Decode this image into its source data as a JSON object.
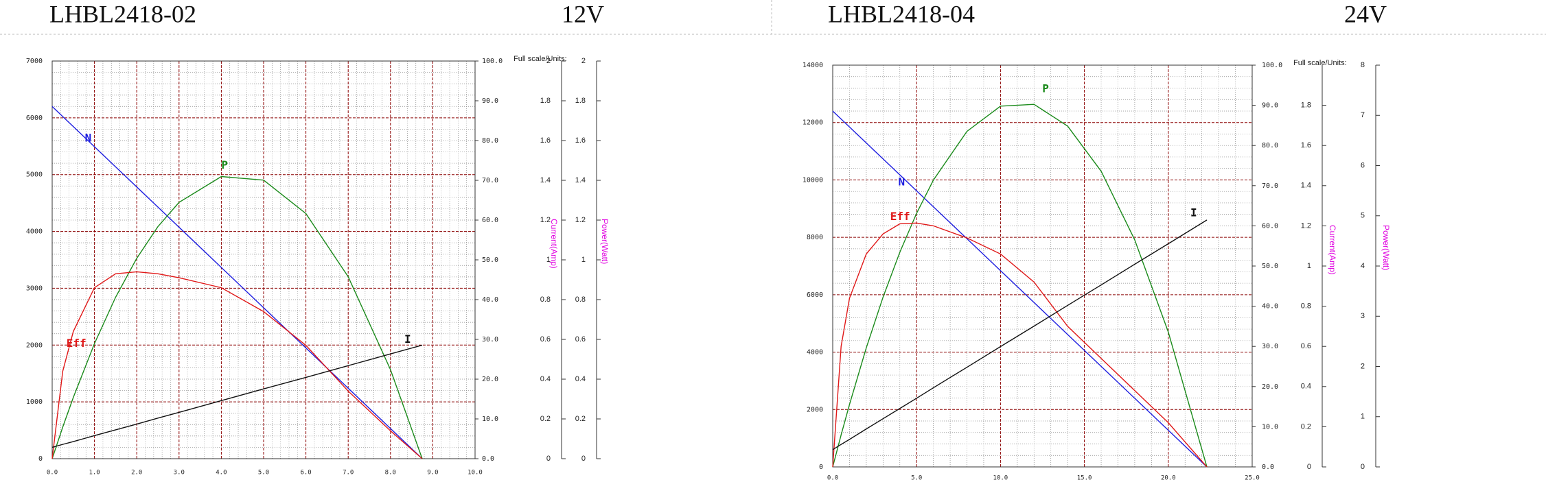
{
  "chart_data": [
    {
      "type": "line",
      "title": "LHBL2418-02",
      "voltage": "12V",
      "full_scale_label": "Full scale/Units:",
      "y3label": "Current(Amp)",
      "y4label": "Power(Watt)",
      "grid": true,
      "x": [
        0,
        0.25,
        0.5,
        1,
        1.5,
        2,
        2.5,
        3,
        4,
        5,
        6,
        7,
        8,
        8.75
      ],
      "xlim": [
        0,
        10
      ],
      "xticks": [
        {
          "value": 0,
          "label": "0.0"
        },
        {
          "value": 1,
          "label": "1.0"
        },
        {
          "value": 2,
          "label": "2.0"
        },
        {
          "value": 3,
          "label": "3.0"
        },
        {
          "value": 4,
          "label": "4.0"
        },
        {
          "value": 5,
          "label": "5.0"
        },
        {
          "value": 6,
          "label": "6.0"
        },
        {
          "value": 7,
          "label": "7.0"
        },
        {
          "value": 8,
          "label": "8.0"
        },
        {
          "value": 9,
          "label": "9.0"
        },
        {
          "value": 10,
          "label": "10.0"
        }
      ],
      "ylim": [
        0,
        7000
      ],
      "yticks": [
        0,
        1000,
        2000,
        3000,
        4000,
        5000,
        6000,
        7000
      ],
      "y2lim": [
        0,
        100
      ],
      "y2ticks": [
        {
          "value": 0,
          "label": "0.0"
        },
        {
          "value": 10,
          "label": "10.0"
        },
        {
          "value": 20,
          "label": "20.0"
        },
        {
          "value": 30,
          "label": "30.0"
        },
        {
          "value": 40,
          "label": "40.0"
        },
        {
          "value": 50,
          "label": "50.0"
        },
        {
          "value": 60,
          "label": "60.0"
        },
        {
          "value": 70,
          "label": "70.0"
        },
        {
          "value": 80,
          "label": "80.0"
        },
        {
          "value": 90,
          "label": "90.0"
        },
        {
          "value": 100,
          "label": "100.0"
        }
      ],
      "y3lim": [
        0,
        2
      ],
      "y3ticks": [
        0,
        0.2,
        0.4,
        0.6,
        0.8,
        1,
        1.2,
        1.4,
        1.6,
        1.8,
        2
      ],
      "y4lim": [
        0,
        2
      ],
      "y4ticks": [
        0,
        0.2,
        0.4,
        0.6,
        0.8,
        1,
        1.2,
        1.4,
        1.6,
        1.8,
        2
      ],
      "series": [
        {
          "name": "N",
          "color": "#1f1fe0",
          "axis": "y",
          "values": [
            6200,
            6023,
            5846,
            5491,
            5137,
            4783,
            4429,
            4074,
            3366,
            2657,
            1949,
            1240,
            531,
            0
          ]
        },
        {
          "name": "P",
          "color": "#1a8a1a",
          "axis": "y4",
          "values": [
            0,
            0.159,
            0.308,
            0.579,
            0.812,
            1.008,
            1.167,
            1.289,
            1.419,
            1.401,
            1.233,
            0.915,
            0.448,
            0
          ]
        },
        {
          "name": "Eff",
          "color": "#e01818",
          "axis": "y2",
          "values": [
            0,
            22,
            32,
            43,
            46.5,
            47,
            46.5,
            45.5,
            43,
            37,
            28.5,
            17,
            7,
            0
          ]
        },
        {
          "name": "I",
          "color": "#111111",
          "axis": "y3",
          "values": [
            0.057,
            0.072,
            0.086,
            0.116,
            0.145,
            0.174,
            0.204,
            0.233,
            0.292,
            0.351,
            0.409,
            0.468,
            0.527,
            0.571
          ]
        }
      ]
    },
    {
      "type": "line",
      "title": "LHBL2418-04",
      "voltage": "24V",
      "full_scale_label": "Full scale/Units:",
      "y3label": "Current(Amp)",
      "y4label": "Power(Watt)",
      "grid": true,
      "x": [
        0,
        0.5,
        1,
        2,
        3,
        4,
        5,
        6,
        8,
        10,
        12,
        14,
        16,
        18,
        20,
        22.3
      ],
      "xlim": [
        0,
        25
      ],
      "xticks": [
        {
          "value": 0,
          "label": "0.0"
        },
        {
          "value": 5,
          "label": "5.0"
        },
        {
          "value": 10,
          "label": "10.0"
        },
        {
          "value": 15,
          "label": "15.0"
        },
        {
          "value": 20,
          "label": "20.0"
        },
        {
          "value": 25,
          "label": "25.0"
        }
      ],
      "ylim": [
        0,
        14000
      ],
      "yticks": [
        0,
        2000,
        4000,
        6000,
        8000,
        10000,
        12000,
        14000
      ],
      "y2lim": [
        0,
        100
      ],
      "y2ticks": [
        {
          "value": 0,
          "label": "0.0"
        },
        {
          "value": 10,
          "label": "10.0"
        },
        {
          "value": 20,
          "label": "20.0"
        },
        {
          "value": 30,
          "label": "30.0"
        },
        {
          "value": 40,
          "label": "40.0"
        },
        {
          "value": 50,
          "label": "50.0"
        },
        {
          "value": 60,
          "label": "60.0"
        },
        {
          "value": 70,
          "label": "70.0"
        },
        {
          "value": 80,
          "label": "80.0"
        },
        {
          "value": 90,
          "label": "90.0"
        },
        {
          "value": 100,
          "label": "100.0"
        }
      ],
      "y3lim": [
        0,
        2
      ],
      "y3ticks": [
        0,
        0.2,
        0.4,
        0.6,
        0.8,
        1,
        1.2,
        1.4,
        1.6,
        1.8
      ],
      "y4lim": [
        0,
        8
      ],
      "y4ticks": [
        0,
        1,
        2,
        3,
        4,
        5,
        6,
        7,
        8
      ],
      "series": [
        {
          "name": "N",
          "color": "#1f1fe0",
          "axis": "y",
          "values": [
            12400,
            12122,
            11844,
            11288,
            10732,
            10176,
            9620,
            9064,
            7952,
            6839,
            5727,
            4615,
            3503,
            2391,
            1279,
            0
          ]
        },
        {
          "name": "P",
          "color": "#1a8a1a",
          "axis": "y4",
          "values": [
            0,
            0.637,
            1.244,
            2.371,
            3.381,
            4.275,
            5.051,
            5.711,
            6.681,
            7.184,
            7.219,
            6.786,
            5.887,
            4.52,
            2.686,
            0
          ]
        },
        {
          "name": "Eff",
          "color": "#e01818",
          "axis": "y2",
          "values": [
            0,
            30,
            42,
            53,
            58,
            60.5,
            60.7,
            60,
            57,
            53,
            46,
            35,
            27,
            19,
            11,
            0
          ]
        },
        {
          "name": "I",
          "color": "#111111",
          "axis": "y3",
          "values": [
            0.086,
            0.112,
            0.137,
            0.189,
            0.24,
            0.291,
            0.342,
            0.394,
            0.496,
            0.599,
            0.701,
            0.804,
            0.906,
            1.009,
            1.111,
            1.229
          ]
        }
      ]
    }
  ]
}
